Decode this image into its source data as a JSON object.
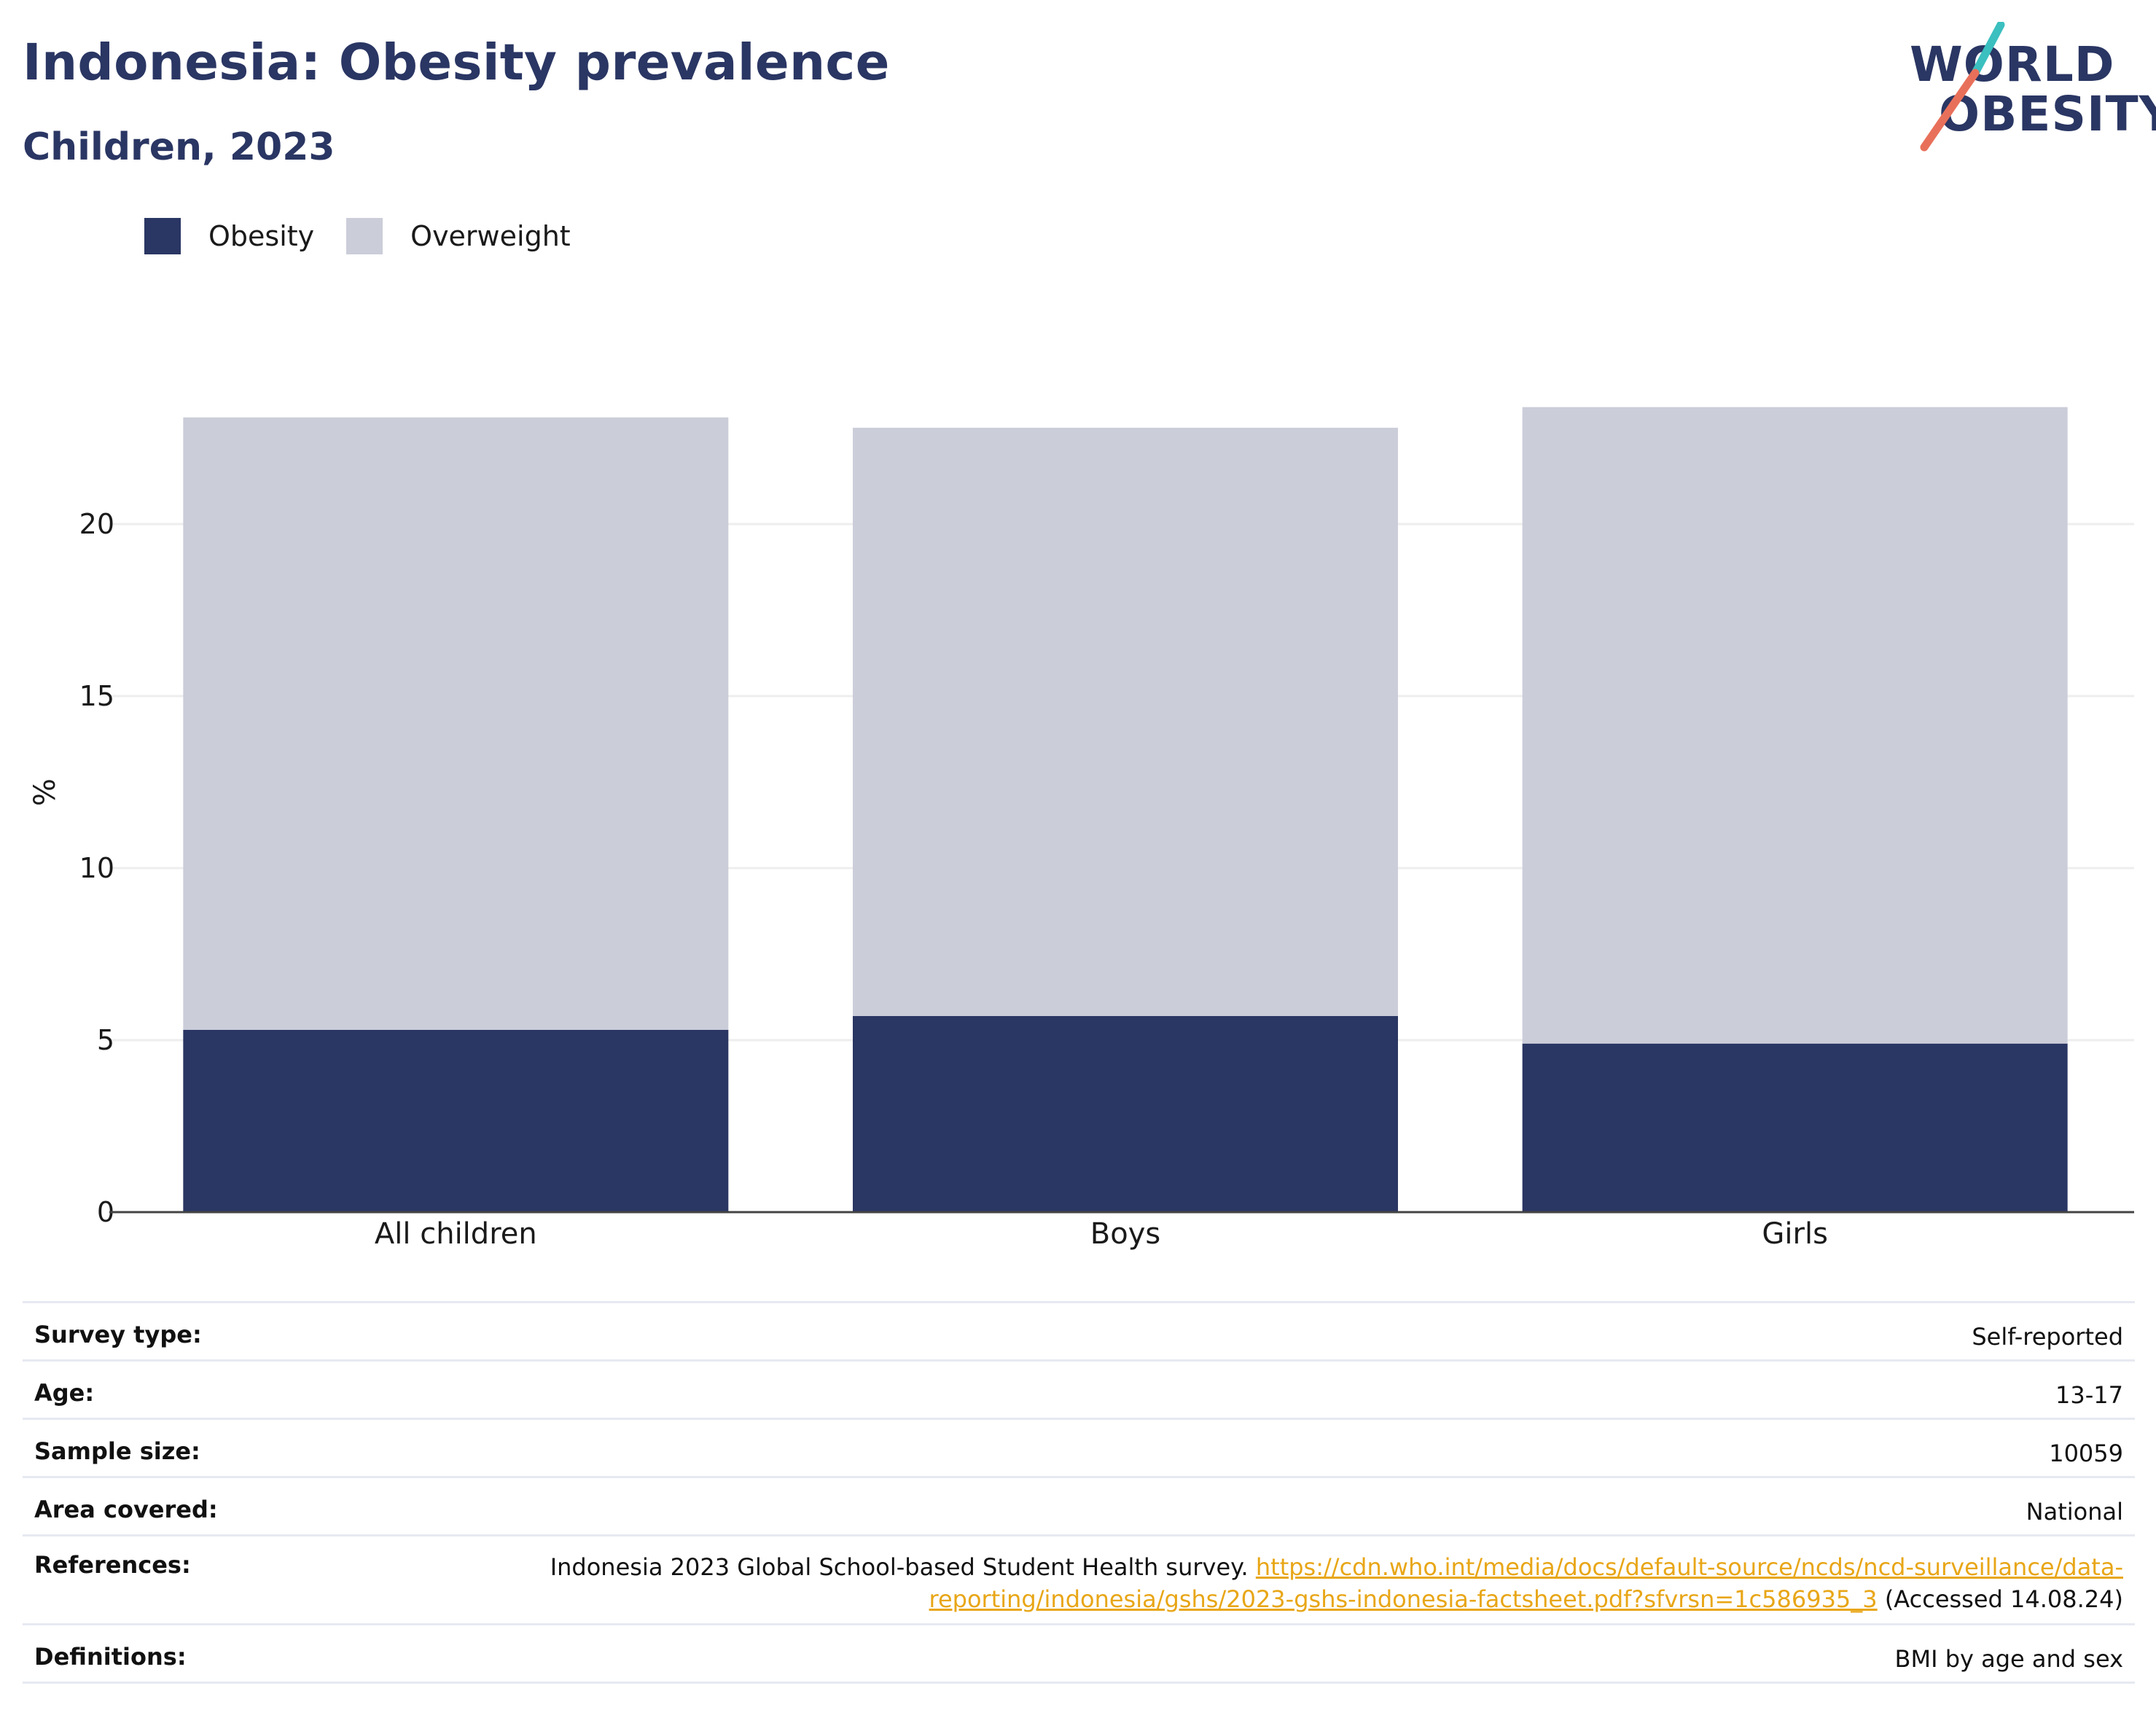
{
  "header": {
    "title": "Indonesia: Obesity prevalence",
    "subtitle": "Children, 2023"
  },
  "logo": {
    "line1": "WORLD",
    "line2": "OBESITY"
  },
  "colors": {
    "obesity": "#2a3663",
    "overweight": "#cbcdd9",
    "link": "#e8a617",
    "title": "#2a3663"
  },
  "chart_data": {
    "type": "bar",
    "stacked": true,
    "categories": [
      "All children",
      "Boys",
      "Girls"
    ],
    "series": [
      {
        "name": "Obesity",
        "values": [
          5.3,
          5.7,
          4.9
        ]
      },
      {
        "name": "Overweight",
        "values": [
          17.8,
          17.1,
          18.5
        ]
      }
    ],
    "title": "Indonesia: Obesity prevalence",
    "subtitle": "Children, 2023",
    "xlabel": "",
    "ylabel": "%",
    "ylim": [
      0,
      25
    ],
    "yticks": [
      0,
      5,
      10,
      15,
      20
    ],
    "grid": true,
    "legend_position": "top-left"
  },
  "info": {
    "survey_type": {
      "label": "Survey type:",
      "value": "Self-reported"
    },
    "age": {
      "label": "Age:",
      "value": "13-17"
    },
    "sample_size": {
      "label": "Sample size:",
      "value": "10059"
    },
    "area_covered": {
      "label": "Area covered:",
      "value": "National"
    },
    "references": {
      "label": "References:",
      "text_before": "Indonesia 2023 Global School-based Student Health survey. ",
      "link_line1": "https://cdn.who.int/media/docs/default-source/ncds/ncd-surveillance/data-",
      "link_line2": "reporting/indonesia/gshs/2023-gshs-indonesia-factsheet.pdf?sfvrsn=1c586935_3",
      "text_after": " (Accessed 14.08.24)"
    },
    "definitions": {
      "label": "Definitions:",
      "value": "BMI by age and sex"
    }
  }
}
